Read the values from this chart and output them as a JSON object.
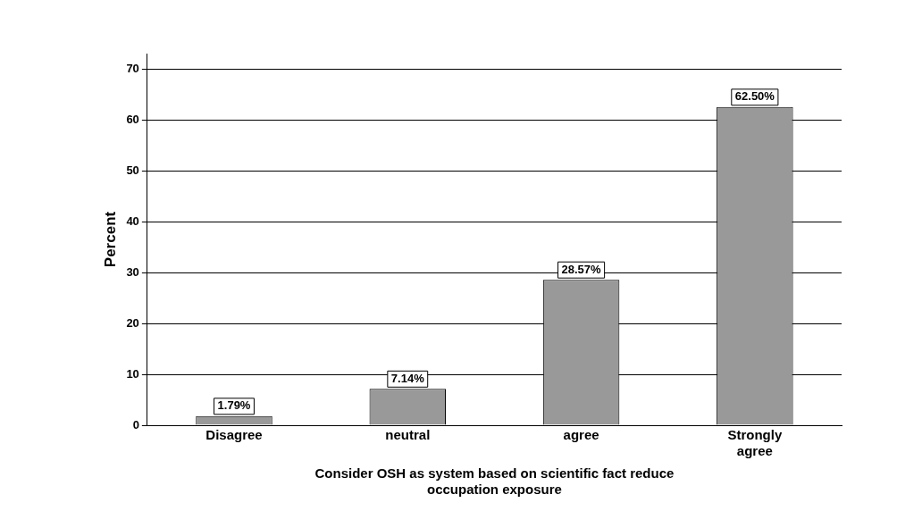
{
  "chart_data": {
    "type": "bar",
    "xlabel": "Consider OSH as system based on scientific fact reduce occupation exposure",
    "ylabel": "Percent",
    "categories": [
      "Disagree",
      "neutral",
      "agree",
      "Strongly agree"
    ],
    "values": [
      1.79,
      7.14,
      28.57,
      62.5
    ],
    "value_labels": [
      "1.79%",
      "7.14%",
      "28.57%",
      "62.50%"
    ],
    "color": "#999999",
    "ylim": [
      0,
      73
    ],
    "yticks": [
      0,
      10,
      20,
      30,
      40,
      50,
      60,
      70
    ],
    "grid": "y",
    "legend": false
  }
}
